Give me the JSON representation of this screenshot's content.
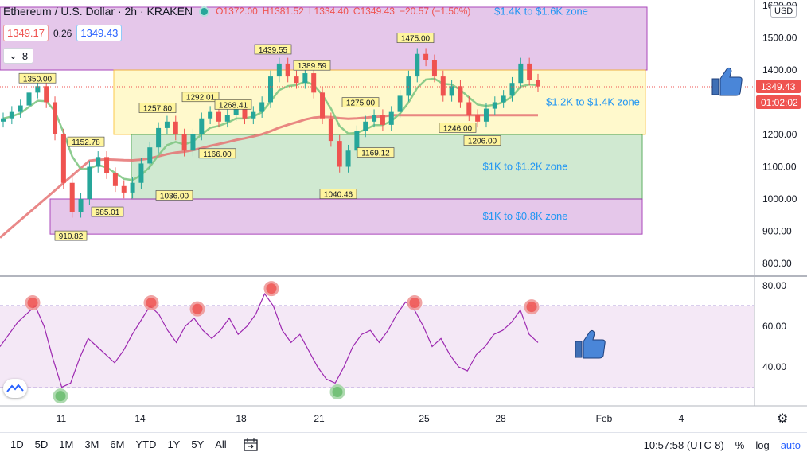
{
  "legend": {
    "title": "Ethereum / U.S. Dollar · 2h · KRAKEN",
    "open": "O1372.00",
    "high": "H1381.52",
    "low": "L1334.40",
    "close": "C1349.43",
    "change": "−20.57 (−1.50%)"
  },
  "quote": {
    "bid": "1349.17",
    "spread": "0.26",
    "ask": "1349.43"
  },
  "indicator_count": "8",
  "currency": "USD",
  "last_price_label": "1349.43",
  "countdown_label": "01:02:02",
  "time_axis": [
    "11",
    "14",
    "18",
    "21",
    "25",
    "28",
    "Feb",
    "4"
  ],
  "price_axis": [
    "1600.00",
    "1500.00",
    "1400.00",
    "1300.00",
    "1200.00",
    "1100.00",
    "1000.00",
    "900.00",
    "800.00"
  ],
  "rsi_axis": [
    "80.00",
    "60.00",
    "40.00"
  ],
  "toolbar": {
    "timeframes": [
      "1D",
      "5D",
      "1M",
      "3M",
      "6M",
      "YTD",
      "1Y",
      "5Y",
      "All"
    ],
    "clock": "10:57:58 (UTC-8)",
    "percent": "%",
    "log": "log",
    "auto": "auto"
  },
  "colors": {
    "up": "#26a69a",
    "down": "#ef5350",
    "ema_short": "#81c784",
    "ema_long": "#e57373",
    "rsi_line": "#9c27b0",
    "zone_purple": "#e1bee7",
    "zone_yellow": "#fff9c4",
    "zone_green": "#c8e6c9",
    "annotation_text": "#2196f3"
  },
  "chart_data": [
    {
      "type": "candlestick",
      "title": "Ethereum / U.S. Dollar · 2h · KRAKEN",
      "y_range": [
        770,
        1630
      ],
      "y_ticks": [
        800,
        900,
        1000,
        1100,
        1200,
        1300,
        1400,
        1500,
        1600
      ],
      "x_range": [
        8.7,
        5.6
      ],
      "x_ticks_labels": [
        "11",
        "14",
        "18",
        "21",
        "25",
        "28",
        "Feb",
        "4"
      ],
      "last_price": 1349.43,
      "zones": [
        {
          "label": "$1.4K to $1.6K zone",
          "low": 1400,
          "high": 1600,
          "color": "purple"
        },
        {
          "label": "$1.2K to $1.4K zone",
          "low": 1200,
          "high": 1400,
          "color": "yellow"
        },
        {
          "label": "$1K to $1.2K zone",
          "low": 1000,
          "high": 1200,
          "color": "green"
        },
        {
          "label": "$1K to $0.8K zone",
          "low": 900,
          "high": 1000,
          "color": "purple"
        }
      ],
      "price_labels": [
        {
          "text": "1350.00",
          "value": 1350,
          "position": "high"
        },
        {
          "text": "910.82",
          "value": 910.82,
          "position": "low"
        },
        {
          "text": "1152.78",
          "value": 1152.78,
          "position": "high"
        },
        {
          "text": "985.01",
          "value": 985.01,
          "position": "low"
        },
        {
          "text": "1257.80",
          "value": 1257.8,
          "position": "high"
        },
        {
          "text": "1036.00",
          "value": 1036,
          "position": "low"
        },
        {
          "text": "1292.01",
          "value": 1292.01,
          "position": "high"
        },
        {
          "text": "1166.00",
          "value": 1166,
          "position": "low"
        },
        {
          "text": "1268.41",
          "value": 1268.41,
          "position": "high"
        },
        {
          "text": "1439.55",
          "value": 1439.55,
          "position": "high"
        },
        {
          "text": "1389.59",
          "value": 1389.59,
          "position": "high"
        },
        {
          "text": "1040.46",
          "value": 1040.46,
          "position": "low"
        },
        {
          "text": "1275.00",
          "value": 1275,
          "position": "high"
        },
        {
          "text": "1169.12",
          "value": 1169.12,
          "position": "low"
        },
        {
          "text": "1475.00",
          "value": 1475,
          "position": "high"
        },
        {
          "text": "1246.00",
          "value": 1246,
          "position": "low"
        },
        {
          "text": "1206.00",
          "value": 1206,
          "position": "low"
        }
      ],
      "series_close_approx": [
        [
          1250,
          1270,
          1290,
          1330,
          1350,
          1300,
          1200,
          1050,
          960,
          1000,
          1100,
          1130,
          1080,
          1040,
          1020,
          1050,
          1110,
          1160,
          1220,
          1240,
          1200,
          1150,
          1200,
          1250,
          1270,
          1240,
          1260,
          1280,
          1250,
          1270,
          1300,
          1380,
          1420,
          1380,
          1360,
          1390,
          1330,
          1250,
          1180,
          1100,
          1150,
          1210,
          1240,
          1260,
          1230,
          1270,
          1320,
          1380,
          1450,
          1430,
          1380,
          1320,
          1350,
          1300,
          1260,
          1240,
          1280,
          1300,
          1320,
          1360,
          1420,
          1370,
          1349
        ]
      ]
    },
    {
      "type": "line",
      "title": "RSI",
      "y_range": [
        20,
        85
      ],
      "y_ticks": [
        40,
        60,
        80
      ],
      "bands": [
        30,
        70
      ],
      "series": [
        {
          "values": [
            50,
            56,
            62,
            66,
            70,
            60,
            44,
            30,
            32,
            44,
            54,
            50,
            46,
            42,
            48,
            56,
            63,
            70,
            66,
            58,
            52,
            60,
            64,
            58,
            54,
            58,
            64,
            56,
            60,
            66,
            76,
            70,
            58,
            52,
            56,
            48,
            40,
            34,
            32,
            40,
            50,
            56,
            58,
            52,
            58,
            66,
            72,
            68,
            60,
            50,
            54,
            46,
            40,
            38,
            46,
            50,
            56,
            58,
            62,
            68,
            56,
            52
          ]
        }
      ],
      "markers": [
        {
          "type": "overbought",
          "value": 70
        },
        {
          "type": "overbought",
          "value": 70
        },
        {
          "type": "overbought",
          "value": 67
        },
        {
          "type": "overbought",
          "value": 77
        },
        {
          "type": "overbought",
          "value": 70
        },
        {
          "type": "overbought",
          "value": 68
        },
        {
          "type": "oversold",
          "value": 28
        },
        {
          "type": "oversold",
          "value": 30
        }
      ]
    }
  ]
}
